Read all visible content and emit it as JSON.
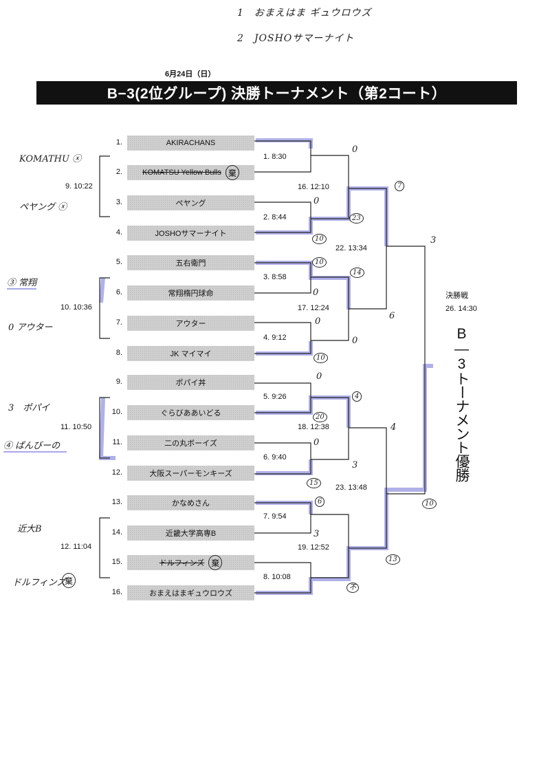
{
  "handwritten_top": [
    "1　おまえはま ギュウロウズ",
    "2　JOSHOサマーナイト"
  ],
  "date": "6月24日（日）",
  "title": "B−3(2位グループ) 決勝トーナメント（第2コート）",
  "teams": [
    {
      "seed": "1.",
      "name": "AKIRACHANS"
    },
    {
      "seed": "2.",
      "name": "KOMATSU Yellow Bulls",
      "struck": true,
      "stamp": "棄"
    },
    {
      "seed": "3.",
      "name": "ペヤング"
    },
    {
      "seed": "4.",
      "name": "JOSHOサマーナイト"
    },
    {
      "seed": "5.",
      "name": "五右衛門"
    },
    {
      "seed": "6.",
      "name": "常翔楕円球命"
    },
    {
      "seed": "7.",
      "name": "アウター"
    },
    {
      "seed": "8.",
      "name": "JK マイマイ"
    },
    {
      "seed": "9.",
      "name": "ポパイ丼"
    },
    {
      "seed": "10.",
      "name": "ぐらびああいどる"
    },
    {
      "seed": "11.",
      "name": "二の丸ボーイズ"
    },
    {
      "seed": "12.",
      "name": "大阪スーパーモンキーズ"
    },
    {
      "seed": "13.",
      "name": "かなめさん"
    },
    {
      "seed": "14.",
      "name": "近畿大学高専B"
    },
    {
      "seed": "15.",
      "name": "ドルフィンズ",
      "struck": true,
      "stamp": "棄"
    },
    {
      "seed": "16.",
      "name": "おまえはまギュウロウズ"
    }
  ],
  "matches": {
    "round1": [
      "1. 8:30",
      "2. 8:44",
      "3. 8:58",
      "4. 9:12",
      "5. 9:26",
      "6. 9:40",
      "7. 9:54",
      "8. 10:08"
    ],
    "consolation": [
      "9. 10:22",
      "10. 10:36",
      "11. 10:50",
      "12. 11:04"
    ],
    "round2": [
      "16. 12:10",
      "17. 12:24",
      "18. 12:38",
      "19. 12:52"
    ],
    "semis": [
      "22. 13:34",
      "23. 13:48"
    ],
    "final_heading": "決勝戦",
    "final": "26. 14:30"
  },
  "champion_label": "B—3トーナメント優勝",
  "handwritten_scores": [
    "0",
    "7",
    "0",
    "23",
    "10",
    "3",
    "10",
    "14",
    "0",
    "6",
    "0",
    "0",
    "10",
    "0",
    "4",
    "20",
    "4",
    "0",
    "3",
    "15",
    "6",
    "3",
    "13",
    "不",
    "10"
  ],
  "handwritten_notes": [
    "KOMATHU ⓧ",
    "ペヤング ⓧ",
    "③ 常翔",
    "0 アウター",
    "3　ポパイ",
    "④ ぱんびーの",
    "近大B",
    "ドルフィンズ"
  ],
  "handwritten_note_stamp": "棄",
  "colors": {
    "title_bg": "#111111",
    "team_bg": "#cfcfcf",
    "highlighter": "#8f8fe0"
  }
}
